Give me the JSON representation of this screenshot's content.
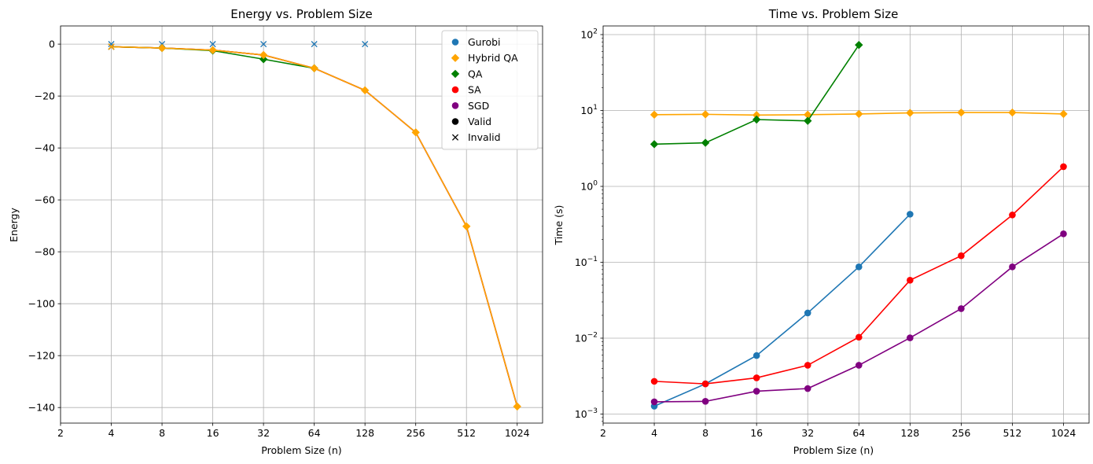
{
  "chart_data": [
    {
      "type": "line",
      "title": "Energy vs. Problem Size",
      "xlabel": "Problem Size (n)",
      "ylabel": "Energy",
      "xscale": "log2",
      "xlim": [
        2,
        1448
      ],
      "ylim": [
        -146,
        7
      ],
      "xticks": [
        2,
        4,
        8,
        16,
        32,
        64,
        128,
        256,
        512,
        1024
      ],
      "xtick_labels": [
        "2",
        "4",
        "8",
        "16",
        "32",
        "64",
        "128",
        "256",
        "512",
        "1024"
      ],
      "yticks": [
        0,
        -20,
        -40,
        -60,
        -80,
        -100,
        -120,
        -140
      ],
      "ytick_labels": [
        "0",
        "−20",
        "−40",
        "−60",
        "−80",
        "−100",
        "−120",
        "−140"
      ],
      "grid": true,
      "legend_position": "top-right",
      "legend": [
        {
          "label": "Gurobi",
          "color": "#1f77b4",
          "marker": "circle"
        },
        {
          "label": "Hybrid QA",
          "color": "#ffa500",
          "marker": "diamond"
        },
        {
          "label": "QA",
          "color": "#008000",
          "marker": "diamond"
        },
        {
          "label": "SA",
          "color": "#ff0000",
          "marker": "circle"
        },
        {
          "label": "SGD",
          "color": "#800080",
          "marker": "circle"
        },
        {
          "label": "Valid",
          "color": "#000000",
          "marker": "circle"
        },
        {
          "label": "Invalid",
          "color": "#000000",
          "marker": "x"
        }
      ],
      "series": [
        {
          "name": "Gurobi",
          "color": "#1f77b4",
          "x": [
            4,
            8,
            16,
            32,
            64,
            128
          ],
          "y": [
            0,
            0,
            0,
            0,
            0,
            0
          ],
          "markers": [
            "x",
            "x",
            "x",
            "x",
            "x",
            "x"
          ],
          "line": false
        },
        {
          "name": "SA",
          "color": "#ff0000",
          "x": [
            4,
            8,
            16,
            32,
            64,
            128,
            256,
            512,
            1024
          ],
          "y": [
            -1,
            -1.5,
            -2.3,
            -4.2,
            -9.3,
            -17.8,
            -34,
            -70.2,
            -139.6
          ],
          "markers": [
            "x",
            "none",
            "none",
            "none",
            "none",
            "none",
            "none",
            "none",
            "none"
          ],
          "line": true
        },
        {
          "name": "SGD",
          "color": "#800080",
          "x": [
            4,
            8,
            16,
            32,
            64,
            128,
            256,
            512,
            1024
          ],
          "y": [
            -1,
            -1.5,
            -2.3,
            -4.2,
            -9.3,
            -17.8,
            -34,
            -70.2,
            -139.6
          ],
          "markers": [
            "x",
            "none",
            "none",
            "none",
            "none",
            "none",
            "none",
            "none",
            "none"
          ],
          "line": true
        },
        {
          "name": "QA",
          "color": "#008000",
          "x": [
            4,
            8,
            16,
            32,
            64
          ],
          "y": [
            -1,
            -1.5,
            -2.5,
            -5.8,
            -9.3
          ],
          "markers": [
            "x",
            "diamond",
            "diamond",
            "diamond",
            "diamond"
          ],
          "line": true
        },
        {
          "name": "Hybrid QA",
          "color": "#ffa500",
          "x": [
            4,
            8,
            16,
            32,
            64,
            128,
            256,
            512,
            1024
          ],
          "y": [
            -1,
            -1.5,
            -2.3,
            -4.2,
            -9.3,
            -17.8,
            -34,
            -70.2,
            -139.6
          ],
          "markers": [
            "x",
            "diamond",
            "diamond",
            "diamond",
            "diamond",
            "diamond",
            "diamond",
            "diamond",
            "diamond"
          ],
          "line": true
        }
      ]
    },
    {
      "type": "line",
      "title": "Time vs. Problem Size",
      "xlabel": "Problem Size (n)",
      "ylabel": "Time (s)",
      "xscale": "log2",
      "yscale": "log10",
      "xlim": [
        2,
        1448
      ],
      "ylim": [
        0.00076,
        130
      ],
      "xticks": [
        2,
        4,
        8,
        16,
        32,
        64,
        128,
        256,
        512,
        1024
      ],
      "xtick_labels": [
        "2",
        "4",
        "8",
        "16",
        "32",
        "64",
        "128",
        "256",
        "512",
        "1024"
      ],
      "yticks": [
        0.001,
        0.01,
        0.1,
        1,
        10,
        100
      ],
      "ytick_labels": [
        {
          "base": "10",
          "exp": "−3"
        },
        {
          "base": "10",
          "exp": "−2"
        },
        {
          "base": "10",
          "exp": "−1"
        },
        {
          "base": "10",
          "exp": "0"
        },
        {
          "base": "10",
          "exp": "1"
        },
        {
          "base": "10",
          "exp": "2"
        }
      ],
      "grid": true,
      "series": [
        {
          "name": "Hybrid QA",
          "color": "#ffa500",
          "x": [
            4,
            8,
            16,
            32,
            64,
            128,
            256,
            512,
            1024
          ],
          "y": [
            8.8,
            8.9,
            8.7,
            8.8,
            9.0,
            9.3,
            9.4,
            9.4,
            9.0
          ],
          "marker": "diamond"
        },
        {
          "name": "QA",
          "color": "#008000",
          "x": [
            4,
            8,
            16,
            32,
            64
          ],
          "y": [
            3.6,
            3.75,
            7.6,
            7.3,
            73
          ],
          "marker": "diamond"
        },
        {
          "name": "Gurobi",
          "color": "#1f77b4",
          "x": [
            4,
            8,
            16,
            32,
            64,
            128
          ],
          "y": [
            0.00127,
            0.0025,
            0.0059,
            0.0215,
            0.087,
            0.43
          ],
          "marker": "circle"
        },
        {
          "name": "SA",
          "color": "#ff0000",
          "x": [
            4,
            8,
            16,
            32,
            64,
            128,
            256,
            512,
            1024
          ],
          "y": [
            0.0027,
            0.0025,
            0.003,
            0.0044,
            0.0103,
            0.058,
            0.122,
            0.42,
            1.82
          ],
          "marker": "circle"
        },
        {
          "name": "SGD",
          "color": "#800080",
          "x": [
            4,
            8,
            16,
            32,
            64,
            128,
            256,
            512,
            1024
          ],
          "y": [
            0.00145,
            0.00147,
            0.002,
            0.00217,
            0.0044,
            0.0101,
            0.0245,
            0.087,
            0.237
          ],
          "marker": "circle"
        }
      ]
    }
  ]
}
